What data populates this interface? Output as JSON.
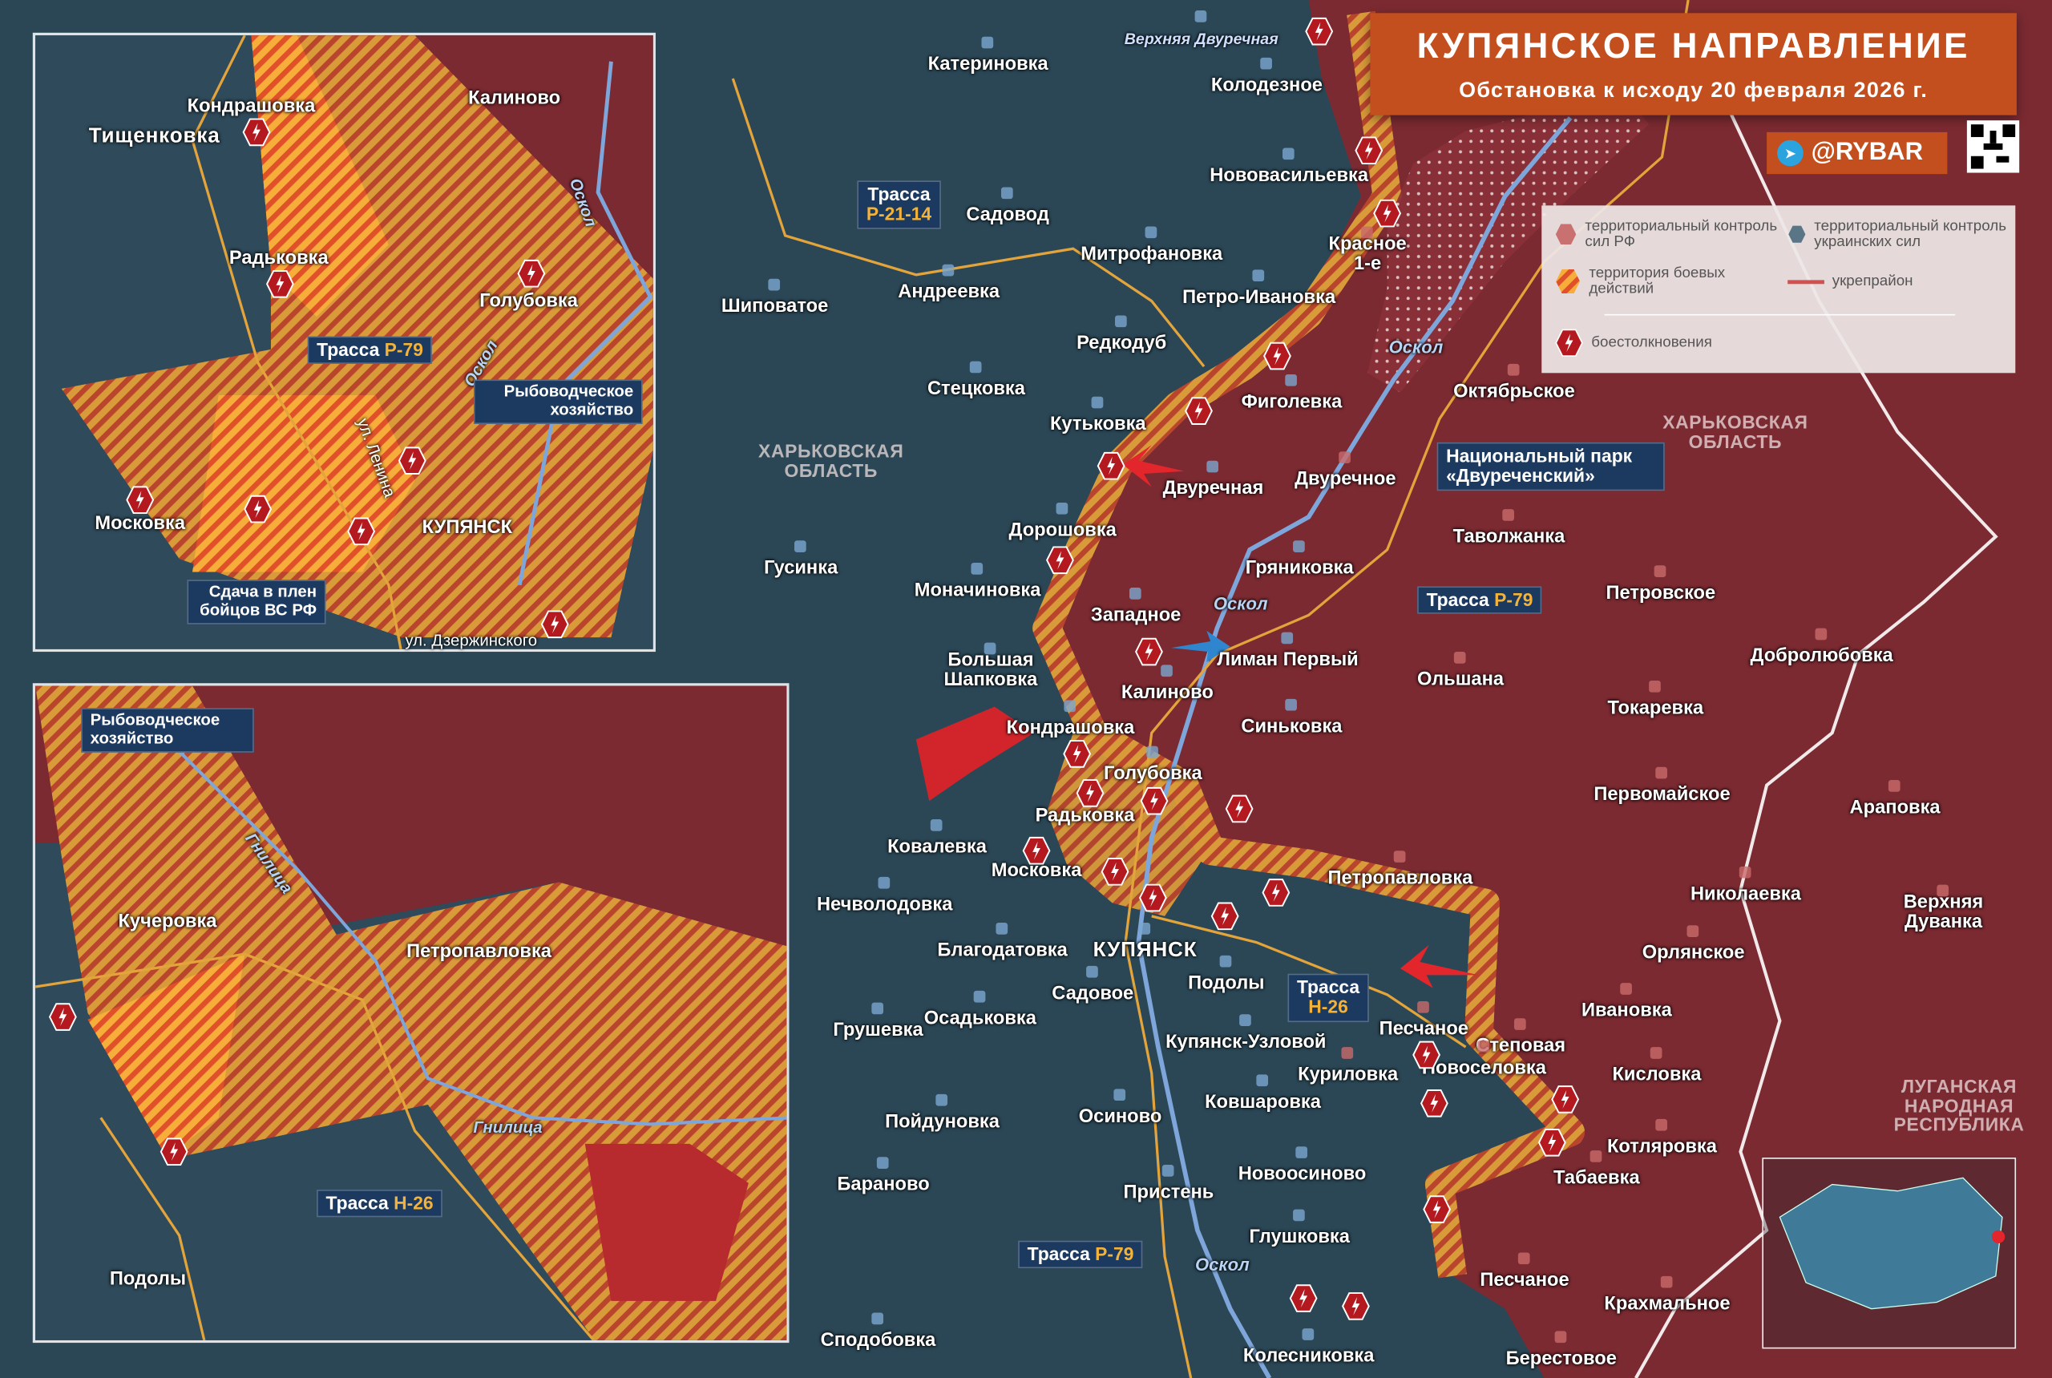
{
  "header": {
    "title": "КУПЯНСКОЕ НАПРАВЛЕНИЕ",
    "subtitle": "Обстановка к исходу 20 февраля 2026 г.",
    "brand": "@RYBAR",
    "brand_icon": "telegram-icon",
    "qr_icon": "qr-code-icon"
  },
  "legend": {
    "ru_control": "территориальный контроль сил РФ",
    "ua_control": "территориальный контроль украинских сил",
    "combat_zone": "территория боевых действий",
    "fortified": "укрепрайон",
    "clashes": "боестолкновения"
  },
  "colors": {
    "ru_control": "#7b2a31",
    "ua_control": "#2b4756",
    "combat_zone": "#e9a23b",
    "clash_marker": "#b3191f",
    "title_bg": "#c24f1d",
    "route_label_bg": "#1c3a60",
    "route_code": "#f3b23a",
    "attack_arrow_ru": "#e3262b",
    "attack_arrow_ua": "#2f86cf"
  },
  "main_map": {
    "places": [
      "Верхняя Двуречная",
      "Катериновка",
      "Колодезное",
      "Нововасильевка",
      "Садовод",
      "Митрофановка",
      "Красное 1-е",
      "Шиповатое",
      "Андреевка",
      "Петро-Ивановка",
      "Редкодуб",
      "Стецковка",
      "Октябрьское",
      "Фиголевка",
      "Кутьковка",
      "Двуречная",
      "Двуречное",
      "Дорошовка",
      "Таволжанка",
      "Гусинка",
      "Гряниковка",
      "Моначиновка",
      "Петровское",
      "Западное",
      "Лиман Первый",
      "Большая Шапковка",
      "Калиново",
      "Ольшана",
      "Добролюбовка",
      "Токаревка",
      "Кондрашовка",
      "Синьковка",
      "Голубовка",
      "Первомайское",
      "Радьковка",
      "Араповка",
      "Ковалевка",
      "Московка",
      "Петропавловка",
      "Николаевка",
      "Нечволодовка",
      "Верхняя Дуванка",
      "Благодатовка",
      "КУПЯНСК",
      "Орлянское",
      "Подолы",
      "Садовое",
      "Песчаное",
      "Осадьковка",
      "Грушевка",
      "Купянск-Узловой",
      "Степовая",
      "Новоселовка",
      "Ивановка",
      "Куриловка",
      "Кисловка",
      "Ковшаровка",
      "Пойдуновка",
      "Осиново",
      "Котляровка",
      "Новоосиново",
      "Табаевка",
      "Бараново",
      "Пристень",
      "Глушковка",
      "Песчаное",
      "Крахмальное",
      "Сподобовка",
      "Колесниковка",
      "Берестовое"
    ],
    "regions": [
      "ХАРЬКОВСКАЯ ОБЛАСТЬ",
      "ХАРЬКОВСКАЯ ОБЛАСТЬ",
      "ЛУГАНСКАЯ НАРОДНАЯ РЕСПУБЛИКА"
    ],
    "rivers": [
      "Оскол",
      "Оскол",
      "Оскол"
    ],
    "routes": [
      {
        "prefix": "Трасса",
        "code": "Р-21-14"
      },
      {
        "prefix": "Трасса",
        "code": "Р-79"
      },
      {
        "prefix": "Трасса",
        "code": "Н-26"
      },
      {
        "prefix": "Трасса",
        "code": "Р-79"
      }
    ],
    "callouts": [
      "Национальный парк «Двуреченский»"
    ]
  },
  "inset_north": {
    "places": [
      "Тищенковка",
      "Кондрашовка",
      "Калиново",
      "Радьковка",
      "Голубовка",
      "Московка",
      "КУПЯНСК"
    ],
    "rivers": [
      "Оскол",
      "Оскол"
    ],
    "streets": [
      "ул. Ленина",
      "ул. Дзержинского"
    ],
    "routes": [
      {
        "prefix": "Трасса",
        "code": "Р-79"
      }
    ],
    "callouts": [
      "Рыбоводческое хозяйство",
      "Сдача в плен бойцов ВС РФ"
    ]
  },
  "inset_south": {
    "places": [
      "Кучеровка",
      "Петропавловка",
      "Подолы"
    ],
    "rivers": [
      "Гнилица",
      "Гнилица"
    ],
    "routes": [
      {
        "prefix": "Трасса",
        "code": "Н-26"
      }
    ],
    "callouts": [
      "Рыбоводческое хозяйство"
    ]
  }
}
